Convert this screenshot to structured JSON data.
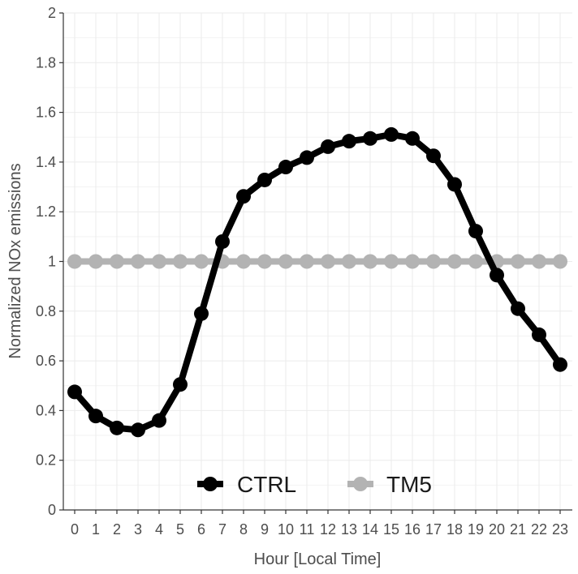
{
  "chart_data": {
    "type": "line",
    "title": "",
    "xlabel": "Hour [Local Time]",
    "ylabel": "Normalized NOx emissions",
    "x": [
      0,
      1,
      2,
      3,
      4,
      5,
      6,
      7,
      8,
      9,
      10,
      11,
      12,
      13,
      14,
      15,
      16,
      17,
      18,
      19,
      20,
      21,
      22,
      23
    ],
    "x_ticks": [
      "0",
      "1",
      "2",
      "3",
      "4",
      "5",
      "6",
      "7",
      "8",
      "9",
      "10",
      "11",
      "12",
      "13",
      "14",
      "15",
      "16",
      "17",
      "18",
      "19",
      "20",
      "21",
      "22",
      "23"
    ],
    "ylim": [
      0,
      2
    ],
    "y_ticks": [
      "0",
      "0.2",
      "0.4",
      "0.6",
      "0.8",
      "1",
      "1.2",
      "1.4",
      "1.6",
      "1.8",
      "2"
    ],
    "grid": true,
    "legend_position": "bottom-center",
    "series": [
      {
        "name": "CTRL",
        "color": "#000000",
        "values": [
          0.475,
          0.378,
          0.33,
          0.322,
          0.36,
          0.505,
          0.79,
          1.08,
          1.262,
          1.328,
          1.38,
          1.418,
          1.462,
          1.484,
          1.495,
          1.511,
          1.495,
          1.425,
          1.31,
          1.122,
          0.945,
          0.81,
          0.705,
          0.585
        ]
      },
      {
        "name": "TM5",
        "color": "#b3b3b3",
        "values": [
          1,
          1,
          1,
          1,
          1,
          1,
          1,
          1,
          1,
          1,
          1,
          1,
          1,
          1,
          1,
          1,
          1,
          1,
          1,
          1,
          1,
          1,
          1,
          1
        ]
      }
    ]
  }
}
